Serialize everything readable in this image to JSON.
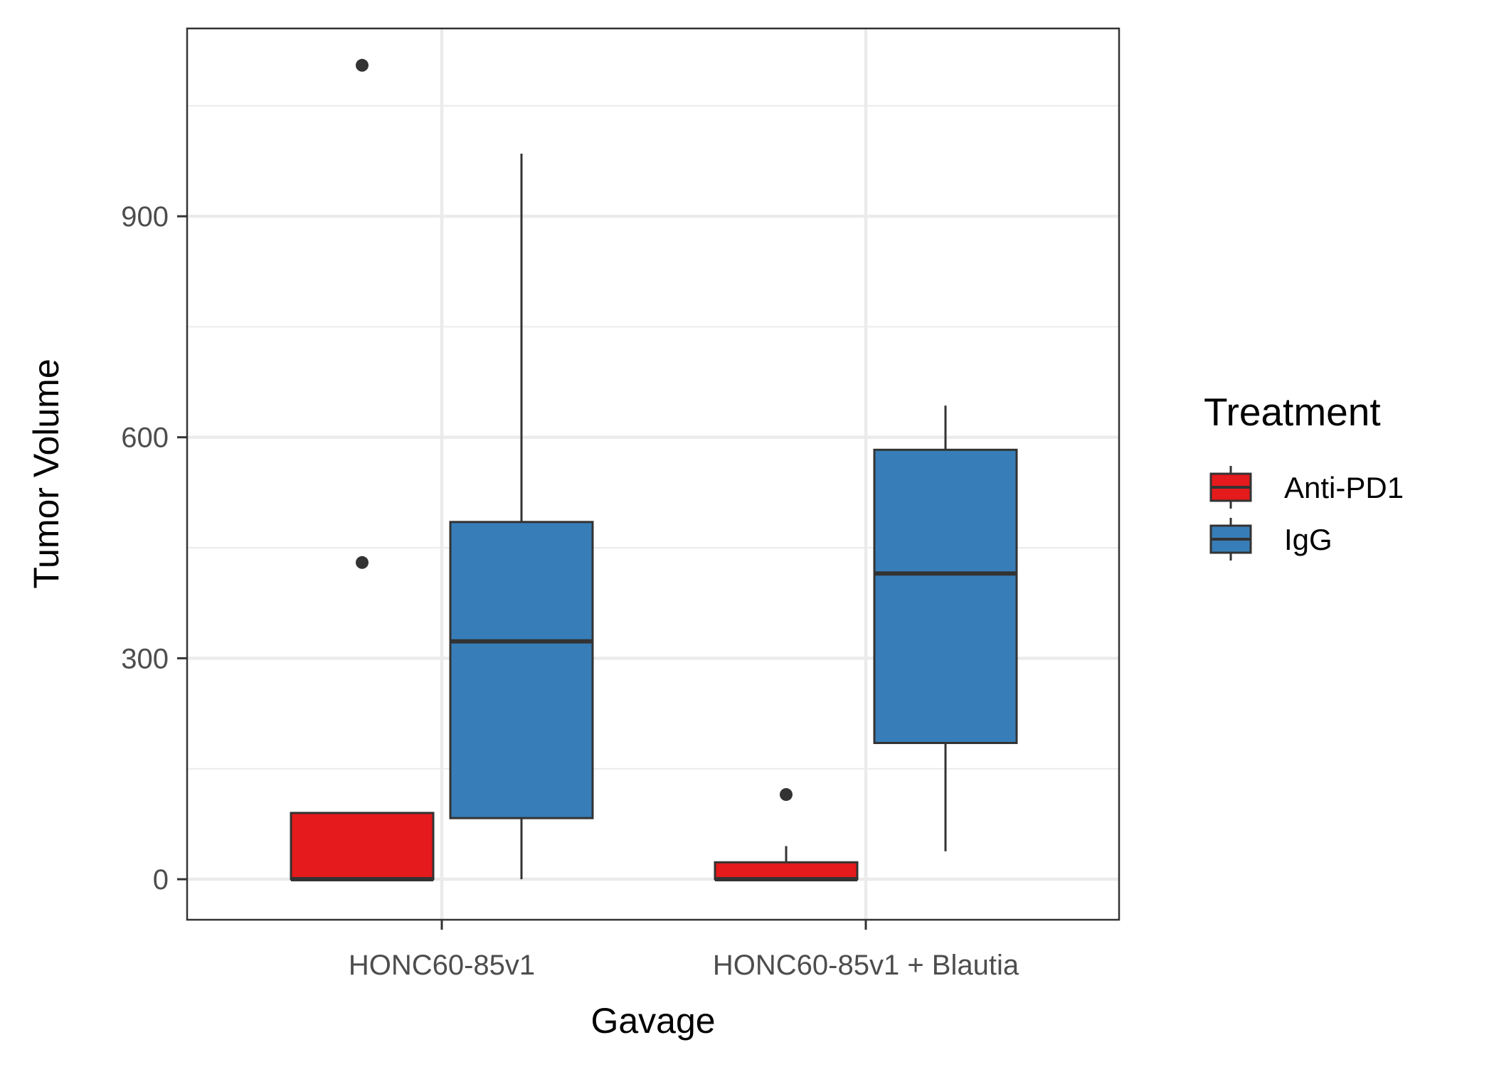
{
  "chart_data": {
    "type": "boxplot",
    "title": "",
    "xlabel": "Gavage",
    "ylabel": "Tumor Volume",
    "ylim": [
      -55,
      1155
    ],
    "yticks": [
      0,
      300,
      600,
      900
    ],
    "ytick_labels": [
      "0",
      "300",
      "600",
      "900"
    ],
    "categories": [
      "HONC60-85v1",
      "HONC60-85v1 + Blautia"
    ],
    "grid": true,
    "legend": {
      "title": "Treatment",
      "position": "right",
      "entries": [
        "Anti-PD1",
        "IgG"
      ]
    },
    "series": [
      {
        "name": "Anti-PD1",
        "color": "#e41a1c",
        "boxes": [
          {
            "category": "HONC60-85v1",
            "min": 0,
            "q1": 0,
            "median": 0,
            "q3": 90,
            "max": 90,
            "outliers": [
              430,
              1105
            ]
          },
          {
            "category": "HONC60-85v1 + Blautia",
            "min": 0,
            "q1": 0,
            "median": 0,
            "q3": 23,
            "max": 45,
            "outliers": [
              115
            ]
          }
        ]
      },
      {
        "name": "IgG",
        "color": "#377eb8",
        "boxes": [
          {
            "category": "HONC60-85v1",
            "min": 0,
            "q1": 83,
            "median": 323,
            "q3": 485,
            "max": 985,
            "outliers": []
          },
          {
            "category": "HONC60-85v1 + Blautia",
            "min": 38,
            "q1": 185,
            "median": 415,
            "q3": 583,
            "max": 643,
            "outliers": []
          }
        ]
      }
    ]
  }
}
